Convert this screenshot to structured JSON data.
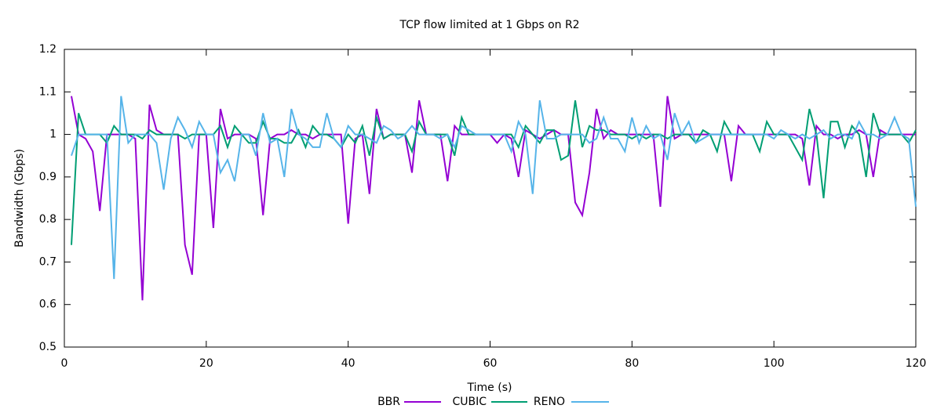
{
  "chart_data": {
    "type": "line",
    "title": "TCP flow limited at 1 Gbps on R2",
    "x_label": "Time (s)",
    "y_label": "Bandwidth (Gbps)",
    "x": [
      1,
      2,
      3,
      4,
      5,
      6,
      7,
      8,
      9,
      10,
      11,
      12,
      13,
      14,
      15,
      16,
      17,
      18,
      19,
      20,
      21,
      22,
      23,
      24,
      25,
      26,
      27,
      28,
      29,
      30,
      31,
      32,
      33,
      34,
      35,
      36,
      37,
      38,
      39,
      40,
      41,
      42,
      43,
      44,
      45,
      46,
      47,
      48,
      49,
      50,
      51,
      52,
      53,
      54,
      55,
      56,
      57,
      58,
      59,
      60,
      61,
      62,
      63,
      64,
      65,
      66,
      67,
      68,
      69,
      70,
      71,
      72,
      73,
      74,
      75,
      76,
      77,
      78,
      79,
      80,
      81,
      82,
      83,
      84,
      85,
      86,
      87,
      88,
      89,
      90,
      91,
      92,
      93,
      94,
      95,
      96,
      97,
      98,
      99,
      100,
      101,
      102,
      103,
      104,
      105,
      106,
      107,
      108,
      109,
      110,
      111,
      112,
      113,
      114,
      115,
      116,
      117,
      118,
      119,
      120
    ],
    "series": [
      {
        "name": "BBR",
        "color": "#9400d3",
        "values": [
          1.09,
          1.0,
          0.99,
          0.96,
          0.82,
          1.0,
          1.0,
          1.0,
          1.0,
          0.99,
          0.61,
          1.07,
          1.01,
          1.0,
          1.0,
          1.0,
          0.74,
          0.67,
          1.0,
          1.0,
          0.78,
          1.06,
          0.99,
          1.0,
          1.0,
          1.0,
          0.99,
          0.81,
          0.99,
          1.0,
          1.0,
          1.01,
          1.0,
          1.0,
          0.99,
          1.0,
          1.0,
          1.0,
          1.0,
          0.79,
          0.99,
          1.0,
          0.86,
          1.06,
          0.99,
          1.0,
          1.0,
          1.0,
          0.91,
          1.08,
          1.0,
          1.0,
          1.0,
          0.89,
          1.02,
          1.0,
          1.0,
          1.0,
          1.0,
          1.0,
          0.98,
          1.0,
          0.99,
          0.9,
          1.01,
          1.0,
          0.99,
          1.0,
          1.01,
          1.0,
          1.0,
          0.84,
          0.81,
          0.91,
          1.06,
          0.99,
          1.01,
          1.0,
          1.0,
          1.0,
          1.0,
          1.0,
          1.0,
          0.83,
          1.09,
          0.99,
          1.0,
          1.0,
          1.0,
          1.0,
          1.0,
          1.0,
          1.0,
          0.89,
          1.02,
          1.0,
          1.0,
          1.0,
          1.0,
          1.0,
          1.0,
          1.0,
          1.0,
          0.99,
          0.88,
          1.02,
          1.0,
          1.0,
          0.99,
          1.0,
          1.0,
          1.01,
          1.0,
          0.9,
          1.01,
          1.0,
          1.0,
          1.0,
          1.0,
          1.0
        ]
      },
      {
        "name": "CUBIC",
        "color": "#009e73",
        "values": [
          0.74,
          1.05,
          1.0,
          1.0,
          1.0,
          0.98,
          1.02,
          1.0,
          1.0,
          1.0,
          0.99,
          1.01,
          1.0,
          1.0,
          1.0,
          1.0,
          0.99,
          1.0,
          1.0,
          1.0,
          1.0,
          1.02,
          0.97,
          1.02,
          1.0,
          0.98,
          0.98,
          1.03,
          0.99,
          0.99,
          0.98,
          0.98,
          1.01,
          0.97,
          1.02,
          1.0,
          1.0,
          0.99,
          0.97,
          1.0,
          0.98,
          1.02,
          0.95,
          1.04,
          0.99,
          1.0,
          1.0,
          1.0,
          0.96,
          1.03,
          1.0,
          1.0,
          1.0,
          1.0,
          0.95,
          1.04,
          1.0,
          1.0,
          1.0,
          1.0,
          1.0,
          1.0,
          1.0,
          0.97,
          1.02,
          1.0,
          0.98,
          1.01,
          1.01,
          0.94,
          0.95,
          1.08,
          0.97,
          1.02,
          1.01,
          1.01,
          1.0,
          1.0,
          1.0,
          0.99,
          1.0,
          0.99,
          1.0,
          1.0,
          0.99,
          1.0,
          1.0,
          1.0,
          0.98,
          1.01,
          1.0,
          0.96,
          1.03,
          1.0,
          1.0,
          1.0,
          1.0,
          0.96,
          1.03,
          1.0,
          1.0,
          1.0,
          0.97,
          0.94,
          1.06,
          1.0,
          0.85,
          1.03,
          1.03,
          0.97,
          1.02,
          1.0,
          0.9,
          1.05,
          1.0,
          1.0,
          1.0,
          1.0,
          0.98,
          1.01
        ]
      },
      {
        "name": "RENO",
        "color": "#56b4e9",
        "values": [
          0.95,
          1.0,
          1.0,
          1.0,
          1.0,
          1.0,
          0.66,
          1.09,
          0.98,
          1.0,
          1.0,
          1.0,
          0.98,
          0.87,
          0.99,
          1.04,
          1.01,
          0.97,
          1.03,
          1.0,
          1.0,
          0.91,
          0.94,
          0.89,
          1.0,
          1.0,
          0.95,
          1.05,
          0.98,
          0.99,
          0.9,
          1.06,
          1.0,
          0.99,
          0.97,
          0.97,
          1.05,
          0.99,
          0.97,
          1.02,
          1.0,
          1.0,
          0.99,
          0.98,
          1.02,
          1.01,
          0.99,
          1.0,
          1.02,
          1.0,
          1.0,
          1.0,
          0.99,
          1.0,
          0.97,
          1.02,
          1.01,
          1.0,
          1.0,
          1.0,
          1.0,
          1.0,
          0.96,
          1.03,
          1.0,
          0.86,
          1.08,
          0.99,
          0.99,
          1.0,
          1.0,
          1.0,
          1.0,
          0.98,
          0.99,
          1.04,
          0.99,
          0.99,
          0.96,
          1.04,
          0.98,
          1.02,
          0.99,
          1.0,
          0.94,
          1.05,
          1.0,
          1.03,
          0.98,
          0.99,
          1.0,
          1.0,
          1.0,
          1.0,
          1.0,
          1.0,
          1.0,
          1.0,
          1.0,
          0.99,
          1.01,
          1.0,
          0.99,
          1.0,
          0.99,
          1.0,
          1.01,
          0.99,
          1.0,
          1.0,
          0.99,
          1.03,
          1.0,
          1.0,
          0.99,
          1.0,
          1.04,
          1.0,
          0.99,
          0.83
        ]
      }
    ],
    "xlim": [
      0,
      120
    ],
    "xticks": [
      0,
      20,
      40,
      60,
      80,
      100,
      120
    ],
    "ylim": [
      0.5,
      1.2
    ],
    "yticks": [
      0.5,
      0.6,
      0.7,
      0.8,
      0.9,
      1,
      1.1,
      1.2
    ],
    "legend": "bottom"
  }
}
